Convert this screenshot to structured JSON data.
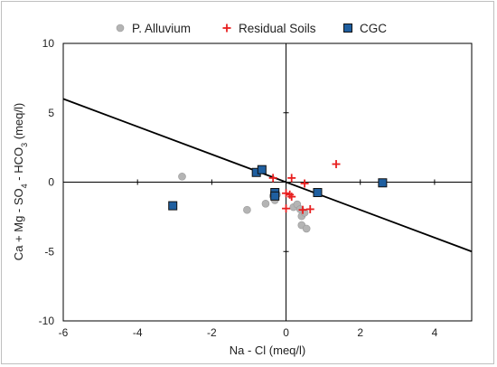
{
  "chart_data": {
    "type": "scatter",
    "title": "",
    "xlabel": "Na - Cl (meq/l)",
    "ylabel_parts": [
      "Ca + Mg - SO",
      "4",
      " - HCO",
      "3",
      " (meq/l)"
    ],
    "xlim": [
      -6,
      5
    ],
    "ylim": [
      -10,
      10
    ],
    "xticks": [
      "-6",
      "-4",
      "-2",
      "0",
      "2",
      "4"
    ],
    "yticks": [
      "-10",
      "-5",
      "0",
      "5",
      "10"
    ],
    "xtick_values": [
      -6,
      -4,
      -2,
      0,
      2,
      4
    ],
    "ytick_values": [
      -10,
      -5,
      0,
      5,
      10
    ],
    "grid": false,
    "legend_position": "top",
    "reference_line": {
      "x": [
        -6,
        5
      ],
      "y": [
        6,
        -5
      ]
    },
    "series": [
      {
        "name": "P. Alluvium",
        "marker": "circle",
        "color": "#b4b4b4",
        "points": [
          [
            -2.8,
            0.4
          ],
          [
            -1.05,
            -2.0
          ],
          [
            -0.55,
            -1.55
          ],
          [
            -0.35,
            -1.0
          ],
          [
            -0.3,
            -1.3
          ],
          [
            -0.25,
            -0.9
          ],
          [
            0.2,
            -1.8
          ],
          [
            0.3,
            -1.6
          ],
          [
            0.38,
            -1.95
          ],
          [
            0.42,
            -2.45
          ],
          [
            0.5,
            -2.2
          ],
          [
            0.42,
            -3.1
          ],
          [
            0.55,
            -3.35
          ]
        ]
      },
      {
        "name": "Residual Soils",
        "marker": "plus",
        "color": "#e81f1f",
        "points": [
          [
            -0.35,
            0.3
          ],
          [
            0.15,
            0.3
          ],
          [
            0.0,
            -0.8
          ],
          [
            0.1,
            -0.9
          ],
          [
            0.15,
            -1.05
          ],
          [
            0.5,
            -0.1
          ],
          [
            0.0,
            -1.9
          ],
          [
            0.45,
            -2.0
          ],
          [
            0.65,
            -1.95
          ],
          [
            1.35,
            1.3
          ]
        ]
      },
      {
        "name": "CGC",
        "marker": "square",
        "color": "#1f5fa0",
        "points": [
          [
            -3.05,
            -1.7
          ],
          [
            -0.8,
            0.7
          ],
          [
            -0.65,
            0.9
          ],
          [
            -0.3,
            -0.75
          ],
          [
            -0.3,
            -1.0
          ],
          [
            0.85,
            -0.75
          ],
          [
            2.6,
            -0.05
          ]
        ]
      }
    ]
  }
}
